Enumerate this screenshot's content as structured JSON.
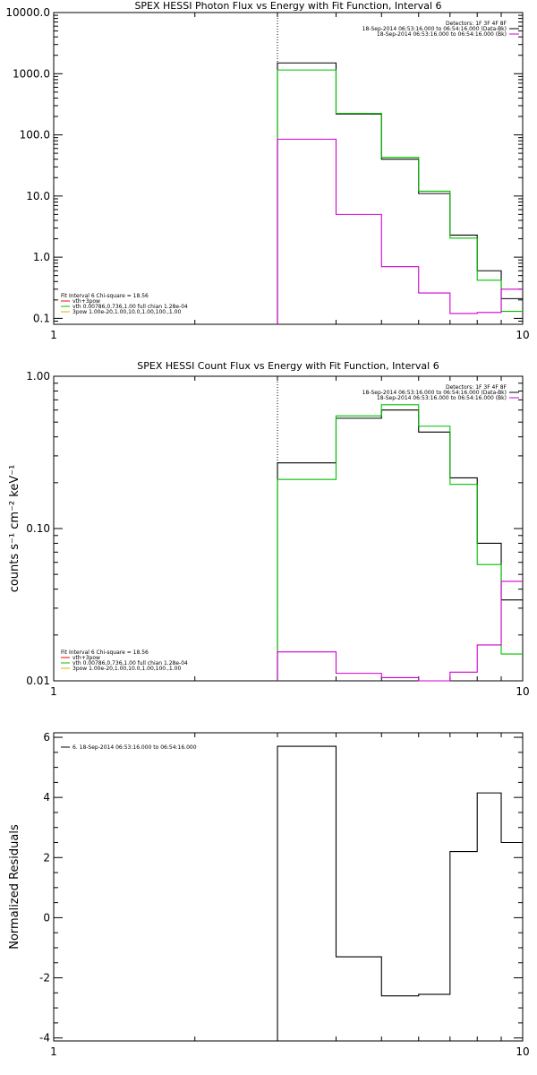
{
  "chart_data": [
    {
      "type": "line",
      "title": "SPEX HESSI Photon Flux vs Energy with Fit Function, Interval 6",
      "xscale": "log",
      "yscale": "log",
      "xlim": [
        1,
        10
      ],
      "ylim": [
        0.08,
        10000
      ],
      "xticks": [
        {
          "v": 1,
          "label": "1"
        },
        {
          "v": 10,
          "label": "10"
        }
      ],
      "yticks": [
        {
          "v": 10000,
          "label": "10000.0"
        },
        {
          "v": 1000,
          "label": "1000.0"
        },
        {
          "v": 100,
          "label": "100.0"
        },
        {
          "v": 10,
          "label": "10.0"
        },
        {
          "v": 1,
          "label": "1.0"
        },
        {
          "v": 0.1,
          "label": "0.1"
        }
      ],
      "legend_top_right": [
        {
          "text": "Detectors: 1F 3F 4F 8F",
          "color": ""
        },
        {
          "text": "18-Sep-2014 06:53:16.000 to 06:54:16.000 (Data-Bk)",
          "color": "#000000"
        },
        {
          "text": "18-Sep-2014 06:53:16.000 to 06:54:16.000 (Bk)",
          "color": "#d000d0"
        }
      ],
      "legend_bottom_left": [
        {
          "text": "Fit Interval 6   Chi-square = 18.56",
          "color": ""
        },
        {
          "text": "vth+3pow",
          "color": "#ff0000"
        },
        {
          "text": "vth 0.00786,0.736,1.00  full chian 1.28e-04",
          "color": "#00c000"
        },
        {
          "text": "3pow 1.00e-20,1.00,10.0,1.00,100.,1.00",
          "color": "#e0b000"
        }
      ],
      "fit_start": 3,
      "edges": [
        3,
        4,
        5,
        6,
        7,
        8,
        9,
        10
      ],
      "series": [
        {
          "color": "#000000",
          "values": [
            1500,
            220,
            40,
            11,
            2.3,
            0.6,
            0.21
          ]
        },
        {
          "color": "#00c000",
          "values": [
            1150,
            225,
            43,
            12,
            2.05,
            0.42,
            0.13
          ]
        },
        {
          "color": "#d000d0",
          "values": [
            85,
            5,
            0.7,
            0.26,
            0.12,
            0.125,
            0.3
          ]
        }
      ]
    },
    {
      "type": "line",
      "title": "SPEX HESSI Count Flux vs Energy with Fit Function, Interval 6",
      "ylabel": "counts s⁻¹ cm⁻² keV⁻¹",
      "xscale": "log",
      "yscale": "log",
      "xlim": [
        1,
        10
      ],
      "ylim": [
        0.01,
        1
      ],
      "xticks": [
        {
          "v": 1,
          "label": "1"
        },
        {
          "v": 10,
          "label": "10"
        }
      ],
      "yticks": [
        {
          "v": 1,
          "label": "1.00"
        },
        {
          "v": 0.1,
          "label": "0.10"
        },
        {
          "v": 0.01,
          "label": "0.01"
        }
      ],
      "legend_top_right": [
        {
          "text": "Detectors: 1F 3F 4F 8F",
          "color": ""
        },
        {
          "text": "18-Sep-2014 06:53:16.000 to 06:54:16.000 (Data-Bk)",
          "color": "#000000"
        },
        {
          "text": "18-Sep-2014 06:53:16.000 to 06:54:16.000 (Bk)",
          "color": "#d000d0"
        }
      ],
      "legend_bottom_left": [
        {
          "text": "Fit Interval 6   Chi-square = 18.56",
          "color": ""
        },
        {
          "text": "vth+3pow",
          "color": "#ff0000"
        },
        {
          "text": "vth 0.00786,0.736,1.00  full chian 1.28e-04",
          "color": "#00c000"
        },
        {
          "text": "3pow 1.00e-20,1.00,10.0,1.00,100.,1.00",
          "color": "#e0b000"
        }
      ],
      "fit_start": 3,
      "edges": [
        3,
        4,
        5,
        6,
        7,
        8,
        9,
        10
      ],
      "series": [
        {
          "color": "#000000",
          "values": [
            0.27,
            0.53,
            0.6,
            0.43,
            0.215,
            0.08,
            0.034
          ]
        },
        {
          "color": "#00c000",
          "values": [
            0.21,
            0.55,
            0.65,
            0.47,
            0.195,
            0.058,
            0.015
          ]
        },
        {
          "color": "#d000d0",
          "values": [
            0.0155,
            0.0112,
            0.0105,
            0.0098,
            0.0114,
            0.0172,
            0.045
          ]
        }
      ]
    },
    {
      "type": "line",
      "title": "",
      "ylabel": "Normalized Residuals",
      "xscale": "log",
      "yscale": "linear",
      "xlim": [
        1,
        10
      ],
      "ylim": [
        -4.1,
        6.15
      ],
      "xticks": [
        {
          "v": 1,
          "label": "1"
        },
        {
          "v": 10,
          "label": "10"
        }
      ],
      "yticks": [
        {
          "v": 6,
          "label": "6"
        },
        {
          "v": 4,
          "label": "4"
        },
        {
          "v": 2,
          "label": "2"
        },
        {
          "v": 0,
          "label": "0"
        },
        {
          "v": -2,
          "label": "-2"
        },
        {
          "v": -4,
          "label": "-4"
        }
      ],
      "legend_top_left": [
        {
          "text": "6. 18-Sep-2014 06:53:16.000 to 06:54:16.000",
          "color": "#000000"
        }
      ],
      "edges": [
        3,
        4,
        5,
        6,
        7,
        8,
        9,
        10
      ],
      "series": [
        {
          "color": "#000000",
          "values": [
            5.7,
            -1.3,
            -2.6,
            -2.55,
            2.2,
            4.15,
            2.5
          ]
        }
      ]
    }
  ]
}
